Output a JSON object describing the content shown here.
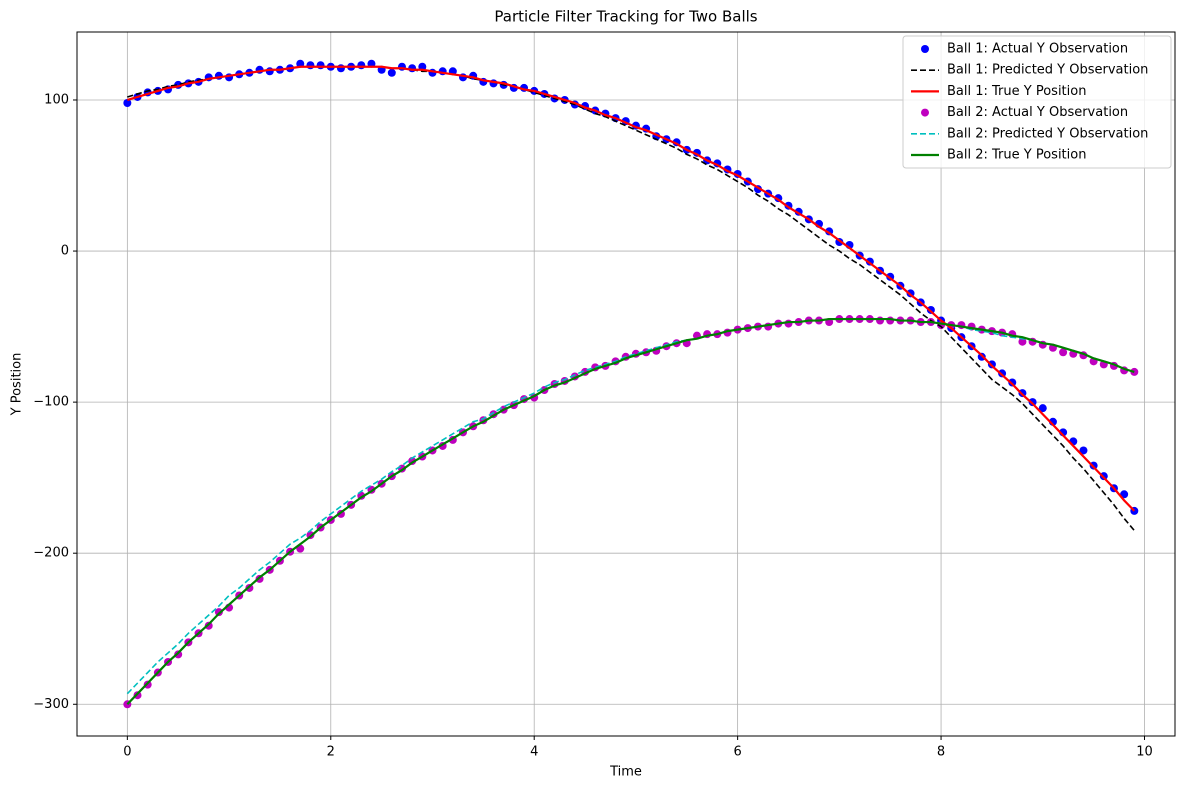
{
  "chart_data": {
    "type": "line",
    "title": "Particle Filter Tracking for Two Balls",
    "x_label": "Time",
    "y_label": "Y Position",
    "x": [
      0,
      0.1,
      0.2,
      0.3,
      0.4,
      0.5,
      0.6,
      0.7,
      0.8,
      0.9,
      1,
      1.1,
      1.2,
      1.3,
      1.4,
      1.5,
      1.6,
      1.7,
      1.8,
      1.9,
      2,
      2.1,
      2.2,
      2.3,
      2.4,
      2.5,
      2.6,
      2.7,
      2.8,
      2.9,
      3,
      3.1,
      3.2,
      3.3,
      3.4,
      3.5,
      3.6,
      3.7,
      3.8,
      3.9,
      4,
      4.1,
      4.2,
      4.3,
      4.4,
      4.5,
      4.6,
      4.7,
      4.8,
      4.9,
      5,
      5.1,
      5.2,
      5.3,
      5.4,
      5.5,
      5.6,
      5.7,
      5.8,
      5.9,
      6,
      6.1,
      6.2,
      6.3,
      6.4,
      6.5,
      6.6,
      6.7,
      6.8,
      6.9,
      7,
      7.1,
      7.2,
      7.3,
      7.4,
      7.5,
      7.6,
      7.7,
      7.8,
      7.9,
      8,
      8.1,
      8.2,
      8.3,
      8.4,
      8.5,
      8.6,
      8.7,
      8.8,
      8.9,
      9,
      9.1,
      9.2,
      9.3,
      9.4,
      9.5,
      9.6,
      9.7,
      9.8,
      9.9
    ],
    "series": [
      {
        "name": "Ball 1: Actual Y Observation",
        "color": "#0000ff",
        "marker": "o",
        "linestyle": "none",
        "values": [
          98,
          102,
          105,
          106,
          107,
          110,
          111,
          112,
          115,
          116,
          115,
          117,
          118,
          120,
          119,
          120,
          121,
          124,
          123,
          123,
          122,
          121,
          122,
          123,
          124,
          120,
          118,
          122,
          121,
          122,
          118,
          119,
          119,
          115,
          116,
          112,
          111,
          110,
          108,
          108,
          106,
          104,
          101,
          100,
          97,
          96,
          93,
          91,
          88,
          86,
          83,
          81,
          76,
          74,
          72,
          67,
          65,
          60,
          58,
          54,
          51,
          46,
          41,
          38,
          35,
          30,
          26,
          21,
          18,
          13,
          6,
          4,
          -3,
          -7,
          -13,
          -17,
          -23,
          -28,
          -34,
          -39,
          -46,
          -51,
          -57,
          -63,
          -70,
          -75,
          -81,
          -87,
          -94,
          -100,
          -104,
          -113,
          -120,
          -126,
          -132,
          -142,
          -149,
          -157,
          -161,
          -172
        ]
      },
      {
        "name": "Ball 1: Predicted Y Observation",
        "color": "#000000",
        "marker": "none",
        "linestyle": "dashed",
        "values": [
          102,
          104,
          106,
          107,
          109,
          110,
          112,
          113,
          114,
          115,
          116,
          117,
          118,
          119,
          120,
          120,
          121,
          122,
          122,
          122,
          122,
          122,
          122,
          122,
          122,
          122,
          121,
          121,
          120,
          119,
          119,
          118,
          117,
          116,
          114,
          113,
          112,
          110,
          109,
          107,
          105,
          103,
          101,
          99,
          97,
          94,
          91,
          89,
          86,
          83,
          80,
          77,
          74,
          71,
          68,
          64,
          61,
          57,
          54,
          50,
          46,
          42,
          37,
          33,
          28,
          24,
          19,
          14,
          9,
          4,
          0,
          -5,
          -9,
          -14,
          -19,
          -24,
          -29,
          -35,
          -41,
          -46,
          -50,
          -57,
          -64,
          -71,
          -78,
          -85,
          -90,
          -95,
          -101,
          -108,
          -115,
          -122,
          -129,
          -137,
          -144,
          -152,
          -160,
          -168,
          -177,
          -185
        ]
      },
      {
        "name": "Ball 1: True Y Position",
        "color": "#ff0000",
        "marker": "none",
        "linestyle": "solid",
        "values": [
          100,
          102,
          104,
          106,
          108,
          109,
          111,
          112,
          114,
          115,
          116,
          117,
          118,
          119,
          120,
          120,
          121,
          122,
          122,
          122,
          122,
          122,
          122,
          122,
          122,
          122,
          121,
          121,
          120,
          120,
          119,
          118,
          117,
          116,
          115,
          113,
          112,
          111,
          109,
          107,
          106,
          104,
          102,
          100,
          98,
          95,
          93,
          90,
          88,
          85,
          82,
          80,
          77,
          74,
          71,
          67,
          64,
          60,
          57,
          53,
          50,
          46,
          42,
          38,
          34,
          29,
          25,
          21,
          16,
          12,
          7,
          2,
          -3,
          -8,
          -13,
          -18,
          -23,
          -29,
          -34,
          -40,
          -46,
          -51,
          -57,
          -63,
          -69,
          -76,
          -82,
          -88,
          -95,
          -101,
          -108,
          -115,
          -122,
          -129,
          -136,
          -143,
          -150,
          -157,
          -165,
          -172
        ]
      },
      {
        "name": "Ball 2: Actual Y Observation",
        "color": "#bf00bf",
        "marker": "o",
        "linestyle": "none",
        "values": [
          -300,
          -294,
          -287,
          -279,
          -272,
          -267,
          -259,
          -253,
          -248,
          -239,
          -236,
          -228,
          -223,
          -217,
          -211,
          -205,
          -199,
          -197,
          -188,
          -183,
          -178,
          -174,
          -168,
          -162,
          -158,
          -154,
          -149,
          -144,
          -139,
          -136,
          -132,
          -129,
          -125,
          -120,
          -116,
          -112,
          -108,
          -105,
          -102,
          -98,
          -97,
          -92,
          -88,
          -86,
          -83,
          -80,
          -77,
          -76,
          -73,
          -70,
          -68,
          -67,
          -66,
          -63,
          -61,
          -61,
          -56,
          -55,
          -55,
          -54,
          -52,
          -51,
          -50,
          -50,
          -48,
          -48,
          -47,
          -46,
          -46,
          -47,
          -45,
          -45,
          -45,
          -45,
          -46,
          -46,
          -46,
          -46,
          -47,
          -47,
          -49,
          -49,
          -49,
          -50,
          -52,
          -53,
          -54,
          -55,
          -60,
          -60,
          -62,
          -64,
          -67,
          -68,
          -69,
          -73,
          -75,
          -76,
          -79,
          -80
        ]
      },
      {
        "name": "Ball 2: Predicted Y Observation",
        "color": "#00bfbf",
        "marker": "none",
        "linestyle": "dashed",
        "values": [
          -293,
          -286,
          -279,
          -272,
          -266,
          -260,
          -253,
          -247,
          -241,
          -235,
          -228,
          -223,
          -217,
          -211,
          -206,
          -200,
          -194,
          -190,
          -185,
          -179,
          -174,
          -169,
          -164,
          -159,
          -155,
          -151,
          -146,
          -142,
          -137,
          -133,
          -129,
          -125,
          -121,
          -117,
          -113,
          -111,
          -107,
          -103,
          -100,
          -97,
          -94,
          -90,
          -87,
          -85,
          -82,
          -79,
          -77,
          -75,
          -73,
          -70,
          -68,
          -66,
          -64,
          -62,
          -60,
          -59,
          -58,
          -56,
          -55,
          -53,
          -52,
          -51,
          -50,
          -49,
          -48,
          -47,
          -47,
          -46,
          -46,
          -45,
          -45,
          -45,
          -45,
          -45,
          -45,
          -45,
          -46,
          -46,
          -47,
          -47,
          -48,
          -49,
          -50,
          -52,
          -53,
          -54,
          -56,
          -57,
          -58,
          -59,
          -61,
          -62,
          -64,
          -66,
          -68,
          -71,
          -73,
          -75,
          -78,
          -80
        ]
      },
      {
        "name": "Ball 2: True Y Position",
        "color": "#008000",
        "marker": "none",
        "linestyle": "solid",
        "values": [
          -300,
          -293,
          -286,
          -279,
          -272,
          -266,
          -259,
          -253,
          -247,
          -240,
          -234,
          -228,
          -222,
          -216,
          -211,
          -205,
          -199,
          -194,
          -189,
          -183,
          -178,
          -173,
          -168,
          -163,
          -159,
          -154,
          -149,
          -145,
          -140,
          -136,
          -132,
          -128,
          -124,
          -120,
          -116,
          -113,
          -109,
          -105,
          -102,
          -99,
          -96,
          -92,
          -89,
          -87,
          -84,
          -81,
          -78,
          -76,
          -74,
          -71,
          -69,
          -67,
          -65,
          -63,
          -61,
          -59,
          -58,
          -56,
          -55,
          -53,
          -52,
          -51,
          -50,
          -49,
          -48,
          -47,
          -47,
          -46,
          -46,
          -45,
          -45,
          -45,
          -45,
          -45,
          -45,
          -45,
          -46,
          -46,
          -47,
          -47,
          -48,
          -49,
          -50,
          -51,
          -52,
          -53,
          -54,
          -56,
          -57,
          -59,
          -61,
          -62,
          -64,
          -66,
          -68,
          -71,
          -73,
          -75,
          -78,
          -80
        ]
      }
    ],
    "xlim": [
      -0.495,
      10.3
    ],
    "ylim": [
      -321,
      145
    ],
    "xticks": [
      0,
      2,
      4,
      6,
      8,
      10
    ],
    "yticks": [
      {
        "value": -300,
        "label": "−300"
      },
      {
        "value": -200,
        "label": "−200"
      },
      {
        "value": -100,
        "label": "−100"
      },
      0,
      100
    ],
    "grid": true,
    "legend": "upper right"
  }
}
